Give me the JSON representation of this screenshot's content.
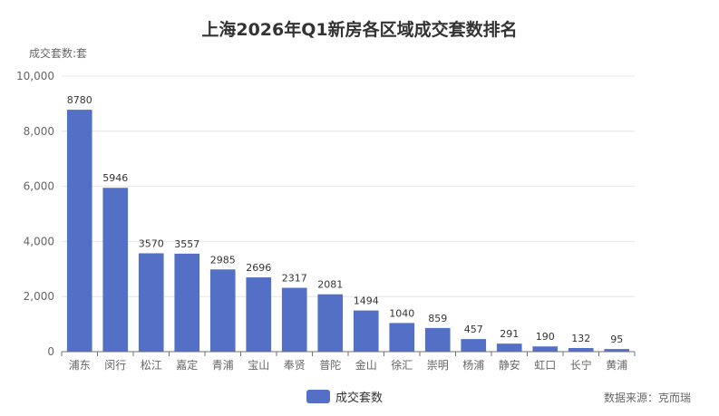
{
  "chart_data": {
    "type": "bar",
    "title": "上海2026年Q1新房各区域成交套数排名",
    "ylabel": "成交套数:套",
    "xlabel": "",
    "categories": [
      "浦东",
      "闵行",
      "松江",
      "嘉定",
      "青浦",
      "宝山",
      "奉贤",
      "普陀",
      "金山",
      "徐汇",
      "崇明",
      "杨浦",
      "静安",
      "虹口",
      "长宁",
      "黄浦"
    ],
    "series": [
      {
        "name": "成交套数",
        "values": [
          8780,
          5946,
          3570,
          3557,
          2985,
          2696,
          2317,
          2081,
          1494,
          1040,
          859,
          457,
          291,
          190,
          132,
          95
        ]
      }
    ],
    "ylim": [
      0,
      10000
    ],
    "yticks": [
      0,
      2000,
      4000,
      6000,
      8000,
      10000
    ],
    "ytick_labels": [
      "0",
      "2,000",
      "4,000",
      "6,000",
      "8,000",
      "10,000"
    ],
    "grid": true,
    "legend_position": "bottom-center",
    "bar_color": "#5470c6",
    "source": "数据来源：克而瑞"
  }
}
